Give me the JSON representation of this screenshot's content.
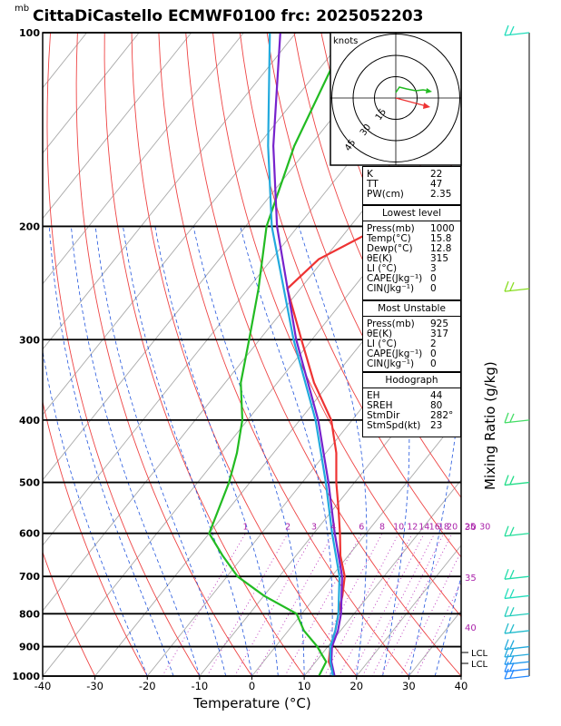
{
  "header": {
    "pressure_unit": "mb",
    "title": "CittaDiCastello ECMWF0100 frc: 2025052203"
  },
  "hodograph": {
    "unit_label": "knots",
    "ring_labels": [
      "15",
      "30",
      "45"
    ],
    "ring_values": [
      15,
      30,
      45
    ],
    "trace_color": "#22bb22",
    "storm_motion_color": "#ee3333"
  },
  "indices": {
    "rows": [
      {
        "key": "K",
        "value": "22"
      },
      {
        "key": "TT",
        "value": "47"
      },
      {
        "key": "PW(cm)",
        "value": "2.35"
      }
    ]
  },
  "lowest_level": {
    "heading": "Lowest level",
    "rows": [
      {
        "key": "Press(mb)",
        "value": "1000"
      },
      {
        "key": "Temp(°C)",
        "value": "15.8"
      },
      {
        "key": "Dewp(°C)",
        "value": "12.8"
      },
      {
        "key": "θE(K)",
        "value": "315"
      },
      {
        "key": "LI (°C)",
        "value": "3"
      },
      {
        "key": "CAPE(Jkg⁻¹)",
        "value": "0"
      },
      {
        "key": "CIN(Jkg⁻¹)",
        "value": "0"
      }
    ]
  },
  "most_unstable": {
    "heading": "Most Unstable",
    "rows": [
      {
        "key": "Press(mb)",
        "value": "925"
      },
      {
        "key": "θE(K)",
        "value": "317"
      },
      {
        "key": "LI (°C)",
        "value": "2"
      },
      {
        "key": "CAPE(Jkg⁻¹)",
        "value": "0"
      },
      {
        "key": "CIN(Jkg⁻¹)",
        "value": "0"
      }
    ]
  },
  "hodograph_stats": {
    "heading": "Hodograph",
    "rows": [
      {
        "key": "EH",
        "value": "44"
      },
      {
        "key": "SREH",
        "value": "80"
      },
      {
        "key": "StmDir",
        "value": "282°"
      },
      {
        "key": "StmSpd(kt)",
        "value": "23"
      }
    ]
  },
  "right_axis_label": "Mixing Ratio (g/kg)",
  "lcl_labels": [
    "LCL",
    "LCL"
  ],
  "chart_data": {
    "type": "line",
    "title": "CittaDiCastello ECMWF0100 frc: 2025052203",
    "xlabel": "Temperature (°C)",
    "ylabel": "mb",
    "xlim": [
      -40,
      40
    ],
    "ylim": [
      1000,
      100
    ],
    "y_scale": "log (skew-T)",
    "x_ticks": [
      "-40",
      "-30",
      "-20",
      "-10",
      "0",
      "10",
      "20",
      "30",
      "40"
    ],
    "x_tick_values": [
      -40,
      -30,
      -20,
      -10,
      0,
      10,
      20,
      30,
      40
    ],
    "pressure_levels": [
      1000,
      900,
      800,
      700,
      600,
      500,
      400,
      300,
      200,
      100
    ],
    "pressure_labels": [
      "1000",
      "900",
      "800",
      "700",
      "600",
      "500",
      "400",
      "300",
      "200",
      "100"
    ],
    "mixing_ratio_labels": [
      "1",
      "2",
      "3",
      "4",
      "6",
      "8",
      "10",
      "12",
      "14",
      "16",
      "18",
      "20",
      "25",
      "30"
    ],
    "mixing_ratio_values": [
      1,
      2,
      3,
      4,
      6,
      8,
      10,
      12,
      14,
      16,
      18,
      20,
      25,
      30
    ],
    "theta_e_labels": [
      "30",
      "35",
      "40"
    ],
    "series": [
      {
        "name": "Temperature",
        "color": "#ee3333",
        "points": [
          [
            1000,
            15.8
          ],
          [
            950,
            12.5
          ],
          [
            900,
            10.5
          ],
          [
            850,
            9
          ],
          [
            800,
            7
          ],
          [
            750,
            5
          ],
          [
            700,
            2.5
          ],
          [
            650,
            -1.5
          ],
          [
            600,
            -5
          ],
          [
            550,
            -9
          ],
          [
            500,
            -13.5
          ],
          [
            450,
            -18
          ],
          [
            400,
            -24
          ],
          [
            350,
            -33
          ],
          [
            300,
            -42
          ],
          [
            250,
            -52.5
          ],
          [
            225,
            -51
          ],
          [
            200,
            -44
          ],
          [
            175,
            -36
          ],
          [
            150,
            -28
          ],
          [
            125,
            -20
          ],
          [
            100,
            -12
          ]
        ]
      },
      {
        "name": "Dewpoint",
        "color": "#22bb22",
        "points": [
          [
            1000,
            12.8
          ],
          [
            950,
            12
          ],
          [
            925,
            10
          ],
          [
            900,
            8
          ],
          [
            850,
            3
          ],
          [
            800,
            -1
          ],
          [
            750,
            -10
          ],
          [
            700,
            -18
          ],
          [
            650,
            -24
          ],
          [
            600,
            -30
          ],
          [
            500,
            -34
          ],
          [
            450,
            -37
          ],
          [
            400,
            -41
          ],
          [
            350,
            -47
          ],
          [
            300,
            -52
          ],
          [
            250,
            -58
          ],
          [
            200,
            -66
          ],
          [
            150,
            -73
          ],
          [
            100,
            -80
          ]
        ]
      },
      {
        "name": "Parcel",
        "color": "#7722cc",
        "points": [
          [
            1000,
            15.8
          ],
          [
            950,
            13
          ],
          [
            900,
            10.8
          ],
          [
            850,
            9.5
          ],
          [
            800,
            7.5
          ],
          [
            700,
            2
          ],
          [
            600,
            -6
          ],
          [
            500,
            -15
          ],
          [
            400,
            -26.5
          ],
          [
            300,
            -43
          ],
          [
            200,
            -64
          ],
          [
            150,
            -77
          ],
          [
            100,
            -93
          ]
        ]
      },
      {
        "name": "Virtual temperature",
        "color": "#22aadd",
        "points": [
          [
            1000,
            15.5
          ],
          [
            950,
            12.8
          ],
          [
            900,
            10.5
          ],
          [
            850,
            9
          ],
          [
            800,
            7
          ],
          [
            700,
            1.5
          ],
          [
            600,
            -6.5
          ],
          [
            500,
            -15.5
          ],
          [
            400,
            -27
          ],
          [
            300,
            -43.5
          ],
          [
            200,
            -65
          ],
          [
            150,
            -78
          ],
          [
            100,
            -95
          ]
        ]
      }
    ],
    "wind_barbs": [
      {
        "p": 1000,
        "color": "#2288ff"
      },
      {
        "p": 975,
        "color": "#2288ff"
      },
      {
        "p": 950,
        "color": "#2299ee"
      },
      {
        "p": 925,
        "color": "#22aadd"
      },
      {
        "p": 900,
        "color": "#22aadd"
      },
      {
        "p": 850,
        "color": "#22bbcc"
      },
      {
        "p": 800,
        "color": "#22ccbb"
      },
      {
        "p": 750,
        "color": "#22ddbb"
      },
      {
        "p": 700,
        "color": "#22ddaa"
      },
      {
        "p": 600,
        "color": "#22dd99"
      },
      {
        "p": 500,
        "color": "#22dd88"
      },
      {
        "p": 400,
        "color": "#44dd66"
      },
      {
        "p": 250,
        "color": "#88dd22"
      },
      {
        "p": 100,
        "color": "#22ddbb"
      }
    ]
  }
}
